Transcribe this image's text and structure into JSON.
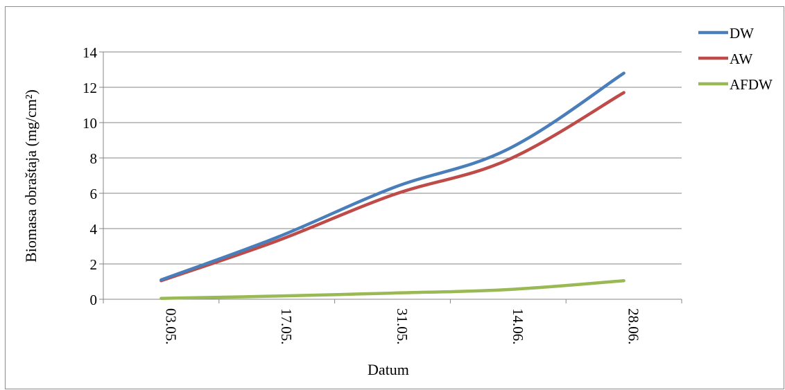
{
  "chart_data": {
    "type": "line",
    "title": "",
    "xlabel": "Datum",
    "ylabel": "Biomasa obraštaja (mg/cm²)",
    "categories": [
      "03.05.",
      "17.05.",
      "31.05.",
      "14.06.",
      "28.06."
    ],
    "ylim": [
      0,
      14
    ],
    "yticks": [
      "0",
      "2",
      "4",
      "6",
      "8",
      "10",
      "12",
      "14"
    ],
    "grid": true,
    "legend_position": "right",
    "series": [
      {
        "name": "DW",
        "color": "#4a7ebb",
        "values": [
          1.1,
          3.5,
          6.3,
          8.5,
          12.8
        ]
      },
      {
        "name": "AW",
        "color": "#be4b48",
        "values": [
          1.05,
          3.3,
          5.9,
          7.9,
          11.7
        ]
      },
      {
        "name": "AFDW",
        "color": "#98b954",
        "values": [
          0.05,
          0.18,
          0.35,
          0.55,
          1.05
        ]
      }
    ]
  }
}
